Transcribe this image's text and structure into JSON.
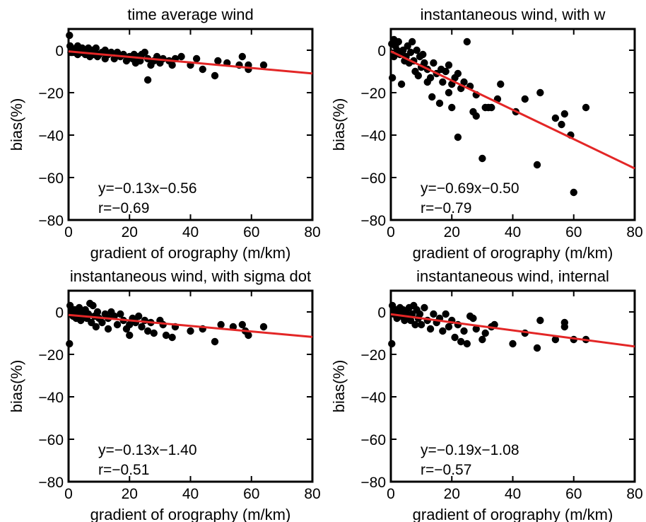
{
  "chart_data": [
    {
      "type": "scatter",
      "title": "time average wind",
      "xlabel": "gradient of orography (m/km)",
      "ylabel": "bias(%)",
      "xlim": [
        0,
        80
      ],
      "ylim": [
        -80,
        10
      ],
      "xticks": [
        "0",
        "20",
        "40",
        "60",
        "80"
      ],
      "yticks": [
        "0",
        "−20",
        "−40",
        "−60",
        "−80"
      ],
      "equation": "y=−0.13x−0.56",
      "r_label": "r=−0.69",
      "fit": {
        "slope": -0.13,
        "intercept": -0.56,
        "color": "#e32626"
      },
      "marker_color": "#000000",
      "points": [
        [
          0.3,
          7
        ],
        [
          0.5,
          2
        ],
        [
          0.8,
          -1
        ],
        [
          1,
          1
        ],
        [
          1.2,
          -1
        ],
        [
          1.5,
          0
        ],
        [
          2,
          -1
        ],
        [
          2.5,
          1
        ],
        [
          3,
          2
        ],
        [
          3,
          -2
        ],
        [
          3.5,
          0
        ],
        [
          4,
          -1
        ],
        [
          4.5,
          1
        ],
        [
          5,
          0
        ],
        [
          5.5,
          -2
        ],
        [
          6,
          -1
        ],
        [
          6.5,
          1
        ],
        [
          7,
          -3
        ],
        [
          7.5,
          -1
        ],
        [
          8,
          0
        ],
        [
          8.5,
          -2
        ],
        [
          9,
          1
        ],
        [
          9.5,
          -3
        ],
        [
          10,
          -2
        ],
        [
          11,
          -1
        ],
        [
          12,
          -4
        ],
        [
          13,
          -2
        ],
        [
          12,
          0
        ],
        [
          14,
          -1
        ],
        [
          15,
          -4
        ],
        [
          16,
          -1
        ],
        [
          17,
          -3
        ],
        [
          18,
          -2
        ],
        [
          19,
          -5
        ],
        [
          20,
          -3
        ],
        [
          21,
          -4
        ],
        [
          21.5,
          -2
        ],
        [
          22,
          -6
        ],
        [
          23,
          -3
        ],
        [
          23.5,
          -5
        ],
        [
          24,
          -2
        ],
        [
          25,
          -1
        ],
        [
          26,
          -4
        ],
        [
          26,
          -14
        ],
        [
          27,
          -7
        ],
        [
          28,
          -5
        ],
        [
          29,
          -3
        ],
        [
          30,
          -6
        ],
        [
          31,
          -4
        ],
        [
          33,
          -5
        ],
        [
          34,
          -7
        ],
        [
          35,
          -4
        ],
        [
          37,
          -3
        ],
        [
          40,
          -7
        ],
        [
          42,
          -4
        ],
        [
          44,
          -9
        ],
        [
          48,
          -12
        ],
        [
          49,
          -5
        ],
        [
          52,
          -6
        ],
        [
          56,
          -7
        ],
        [
          57,
          -3
        ],
        [
          59,
          -9
        ],
        [
          59,
          -7
        ],
        [
          64,
          -7
        ]
      ]
    },
    {
      "type": "scatter",
      "title": "instantaneous wind, with w",
      "xlabel": "gradient of orography (m/km)",
      "ylabel": "bias(%)",
      "xlim": [
        0,
        80
      ],
      "ylim": [
        -80,
        10
      ],
      "xticks": [
        "0",
        "20",
        "40",
        "60",
        "80"
      ],
      "yticks": [
        "0",
        "−20",
        "−40",
        "−60",
        "−80"
      ],
      "equation": "y=−0.69x−0.50",
      "r_label": "r=−0.79",
      "fit": {
        "slope": -0.69,
        "intercept": -0.5,
        "color": "#e32626"
      },
      "marker_color": "#000000",
      "points": [
        [
          0.3,
          3
        ],
        [
          0.5,
          -13
        ],
        [
          1,
          5
        ],
        [
          1,
          -3
        ],
        [
          1.5,
          2
        ],
        [
          2,
          0
        ],
        [
          2.5,
          4
        ],
        [
          3,
          -2
        ],
        [
          3.5,
          -16
        ],
        [
          4,
          0
        ],
        [
          4.5,
          -5
        ],
        [
          5,
          -3
        ],
        [
          5.5,
          2
        ],
        [
          6,
          -6
        ],
        [
          6.5,
          -1
        ],
        [
          7,
          4
        ],
        [
          7.5,
          -5
        ],
        [
          8,
          -10
        ],
        [
          8.5,
          0
        ],
        [
          9,
          -12
        ],
        [
          9.5,
          -3
        ],
        [
          10,
          -8
        ],
        [
          10.5,
          -2
        ],
        [
          11,
          -6
        ],
        [
          12,
          -9
        ],
        [
          12,
          -15
        ],
        [
          13,
          -13
        ],
        [
          13.5,
          -22
        ],
        [
          14,
          -6
        ],
        [
          15,
          -11
        ],
        [
          16,
          -25
        ],
        [
          16.5,
          -9
        ],
        [
          17,
          -15
        ],
        [
          18,
          -10
        ],
        [
          19,
          -7
        ],
        [
          19,
          -20
        ],
        [
          20,
          -16
        ],
        [
          20,
          -27
        ],
        [
          21,
          -13
        ],
        [
          22,
          -41
        ],
        [
          22,
          -11
        ],
        [
          23,
          -18
        ],
        [
          24,
          -15
        ],
        [
          25,
          4
        ],
        [
          26,
          -17
        ],
        [
          27,
          -29
        ],
        [
          28,
          -21
        ],
        [
          28,
          -31
        ],
        [
          30,
          -51
        ],
        [
          31,
          -27
        ],
        [
          32,
          -27
        ],
        [
          33,
          -27
        ],
        [
          35,
          -23
        ],
        [
          36,
          -16
        ],
        [
          41,
          -29
        ],
        [
          44,
          -23
        ],
        [
          48,
          -54
        ],
        [
          49,
          -20
        ],
        [
          54,
          -32
        ],
        [
          56,
          -35
        ],
        [
          57,
          -30
        ],
        [
          59,
          -40
        ],
        [
          60,
          -67
        ],
        [
          64,
          -27
        ]
      ]
    },
    {
      "type": "scatter",
      "title": "instantaneous wind, with sigma dot",
      "xlabel": "gradient of orography (m/km)",
      "ylabel": "bias(%)",
      "xlim": [
        0,
        80
      ],
      "ylim": [
        -80,
        10
      ],
      "xticks": [
        "0",
        "20",
        "40",
        "60",
        "80"
      ],
      "yticks": [
        "0",
        "−20",
        "−40",
        "−60",
        "−80"
      ],
      "equation": "y=−0.13x−1.40",
      "r_label": "r=−0.51",
      "fit": {
        "slope": -0.13,
        "intercept": -1.4,
        "color": "#e32626"
      },
      "marker_color": "#000000",
      "points": [
        [
          0.3,
          -15
        ],
        [
          0.5,
          3
        ],
        [
          1,
          0
        ],
        [
          1.5,
          -2
        ],
        [
          2,
          1
        ],
        [
          2.5,
          -3
        ],
        [
          3,
          -1
        ],
        [
          3.5,
          2
        ],
        [
          4,
          -4
        ],
        [
          4.5,
          0
        ],
        [
          5,
          -2
        ],
        [
          5.5,
          1
        ],
        [
          6,
          -3
        ],
        [
          6.5,
          -1
        ],
        [
          7,
          4
        ],
        [
          7.5,
          -5
        ],
        [
          8,
          3
        ],
        [
          8.5,
          -2
        ],
        [
          9,
          -7
        ],
        [
          9.5,
          0
        ],
        [
          10,
          -3
        ],
        [
          11,
          -5
        ],
        [
          12,
          -1
        ],
        [
          13,
          -3
        ],
        [
          13,
          -8
        ],
        [
          14,
          0
        ],
        [
          15,
          -2
        ],
        [
          16,
          -6
        ],
        [
          17,
          -1
        ],
        [
          18,
          -4
        ],
        [
          19,
          -8
        ],
        [
          20,
          -6
        ],
        [
          20,
          -11
        ],
        [
          21,
          -3
        ],
        [
          22,
          -5
        ],
        [
          23,
          -2
        ],
        [
          24,
          -7
        ],
        [
          25,
          -4
        ],
        [
          26,
          -9
        ],
        [
          27,
          -5
        ],
        [
          28,
          -10
        ],
        [
          30,
          -4
        ],
        [
          31,
          -6
        ],
        [
          32,
          -11
        ],
        [
          34,
          -12
        ],
        [
          35,
          -7
        ],
        [
          40,
          -9
        ],
        [
          44,
          -8
        ],
        [
          48,
          -14
        ],
        [
          50,
          -6
        ],
        [
          54,
          -7
        ],
        [
          57,
          -6
        ],
        [
          58,
          -9
        ],
        [
          59,
          -11
        ],
        [
          64,
          -7
        ]
      ]
    },
    {
      "type": "scatter",
      "title": "instantaneous wind, internal",
      "xlabel": "gradient of orography (m/km)",
      "ylabel": "bias(%)",
      "xlim": [
        0,
        80
      ],
      "ylim": [
        -80,
        10
      ],
      "xticks": [
        "0",
        "20",
        "40",
        "60",
        "80"
      ],
      "yticks": [
        "0",
        "−20",
        "−40",
        "−60",
        "−80"
      ],
      "equation": "y=−0.19x−1.08",
      "r_label": "r=−0.57",
      "fit": {
        "slope": -0.19,
        "intercept": -1.08,
        "color": "#e32626"
      },
      "marker_color": "#000000",
      "points": [
        [
          0.3,
          -15
        ],
        [
          0.5,
          3
        ],
        [
          1,
          -1
        ],
        [
          1.5,
          1
        ],
        [
          2,
          -3
        ],
        [
          2.5,
          0
        ],
        [
          3,
          2
        ],
        [
          3.5,
          -2
        ],
        [
          4,
          1
        ],
        [
          4.5,
          -4
        ],
        [
          5,
          0
        ],
        [
          5.5,
          -2
        ],
        [
          6,
          2
        ],
        [
          6.5,
          -4
        ],
        [
          7,
          -1
        ],
        [
          7.5,
          3
        ],
        [
          8,
          -6
        ],
        [
          8.5,
          1
        ],
        [
          9,
          -3
        ],
        [
          9.5,
          -1
        ],
        [
          10,
          -6
        ],
        [
          11,
          2
        ],
        [
          12,
          -4
        ],
        [
          13,
          -8
        ],
        [
          14,
          -1
        ],
        [
          15,
          -5
        ],
        [
          16,
          -3
        ],
        [
          17,
          -9
        ],
        [
          18,
          -1
        ],
        [
          19,
          -7
        ],
        [
          20,
          -4
        ],
        [
          21,
          -12
        ],
        [
          22,
          -6
        ],
        [
          23,
          -14
        ],
        [
          24,
          -9
        ],
        [
          25,
          -15
        ],
        [
          26,
          -2
        ],
        [
          27,
          -3
        ],
        [
          28,
          -8
        ],
        [
          30,
          -13
        ],
        [
          31,
          -10
        ],
        [
          33,
          -7
        ],
        [
          34,
          -6
        ],
        [
          40,
          -15
        ],
        [
          44,
          -10
        ],
        [
          48,
          -17
        ],
        [
          49,
          -4
        ],
        [
          54,
          -13
        ],
        [
          57,
          -5
        ],
        [
          57,
          -7
        ],
        [
          60,
          -13
        ],
        [
          64,
          -13
        ]
      ]
    }
  ]
}
